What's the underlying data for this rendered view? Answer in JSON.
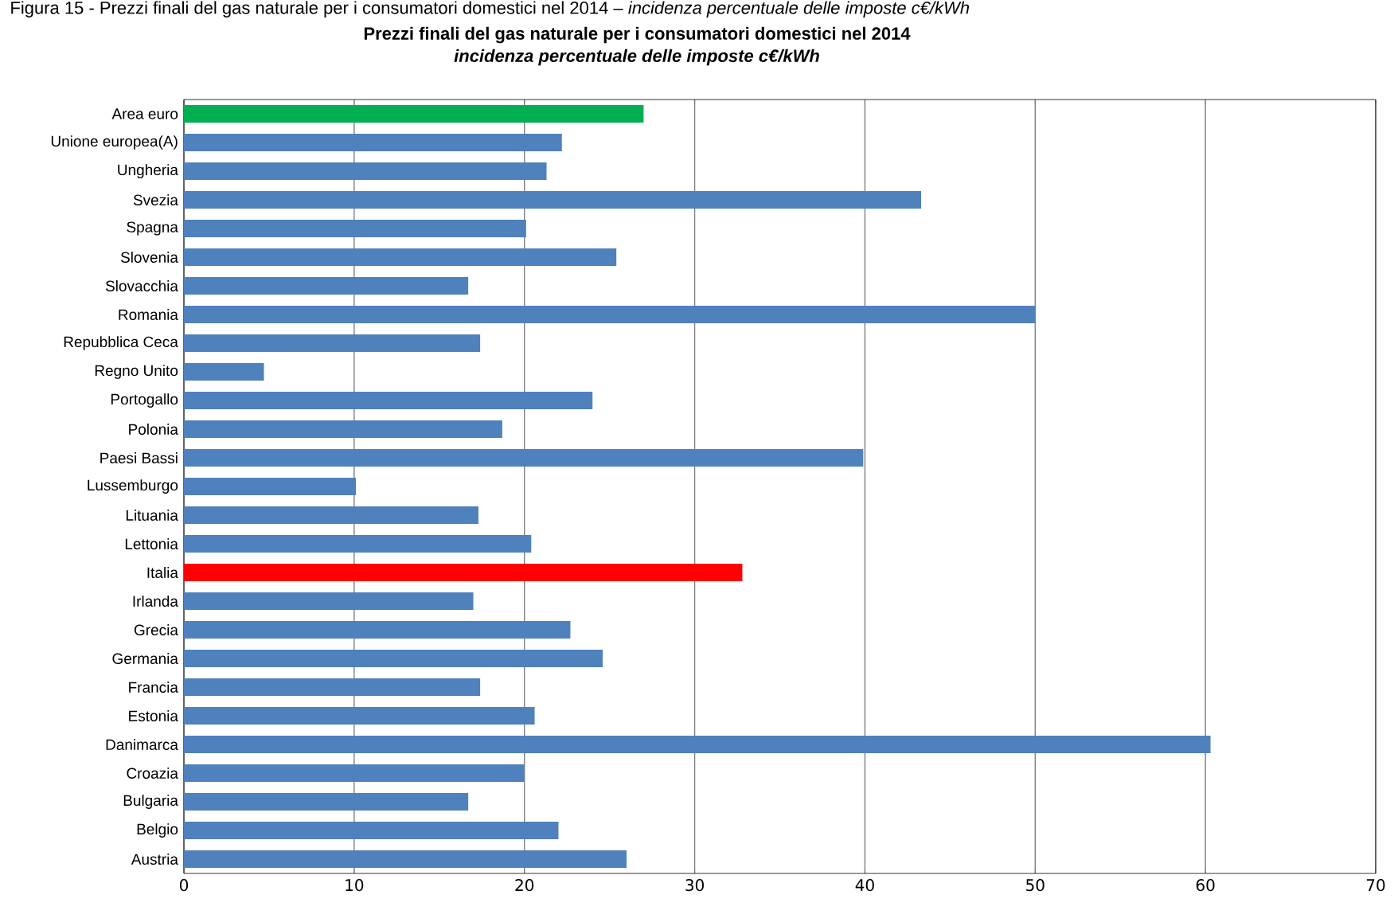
{
  "chart_data": {
    "type": "bar",
    "orientation": "horizontal",
    "title": "Prezzi finali del gas naturale per i consumatori domestici nel 2014",
    "subtitle": "incidenza percentuale delle imposte c€/kWh",
    "annotations": [
      "Figura 15 - Prezzi finali del gas naturale per i consumatori domestici nel 2014 – *incidenza percentuale delle imposte c€/kWh*"
    ],
    "categories": [
      "Area euro",
      "Unione europea(A)",
      "Ungheria",
      "Svezia",
      "Spagna",
      "Slovenia",
      "Slovacchia",
      "Romania",
      "Repubblica Ceca",
      "Regno Unito",
      "Portogallo",
      "Polonia",
      "Paesi Bassi",
      "Lussemburgo",
      "Lituania",
      "Lettonia",
      "Italia",
      "Irlanda",
      "Grecia",
      "Germania",
      "Francia",
      "Estonia",
      "Danimarca",
      "Croazia",
      "Bulgaria",
      "Belgio",
      "Austria"
    ],
    "values": [
      27.0,
      22.2,
      21.3,
      43.3,
      20.1,
      25.4,
      16.7,
      50.0,
      17.4,
      4.7,
      24.0,
      18.7,
      39.9,
      10.1,
      17.3,
      20.4,
      32.8,
      17.0,
      22.7,
      24.6,
      17.4,
      20.6,
      60.3,
      20.0,
      16.7,
      22.0,
      26.0
    ],
    "colors": [
      "#00b050",
      "#4f81bd",
      "#4f81bd",
      "#4f81bd",
      "#4f81bd",
      "#4f81bd",
      "#4f81bd",
      "#4f81bd",
      "#4f81bd",
      "#4f81bd",
      "#4f81bd",
      "#4f81bd",
      "#4f81bd",
      "#4f81bd",
      "#4f81bd",
      "#4f81bd",
      "#ff0000",
      "#4f81bd",
      "#4f81bd",
      "#4f81bd",
      "#4f81bd",
      "#4f81bd",
      "#4f81bd",
      "#4f81bd",
      "#4f81bd",
      "#4f81bd",
      "#4f81bd"
    ],
    "xlim": [
      0,
      70
    ],
    "xticks": [
      0,
      10,
      20,
      30,
      40,
      50,
      60,
      70
    ],
    "grid": "x"
  }
}
